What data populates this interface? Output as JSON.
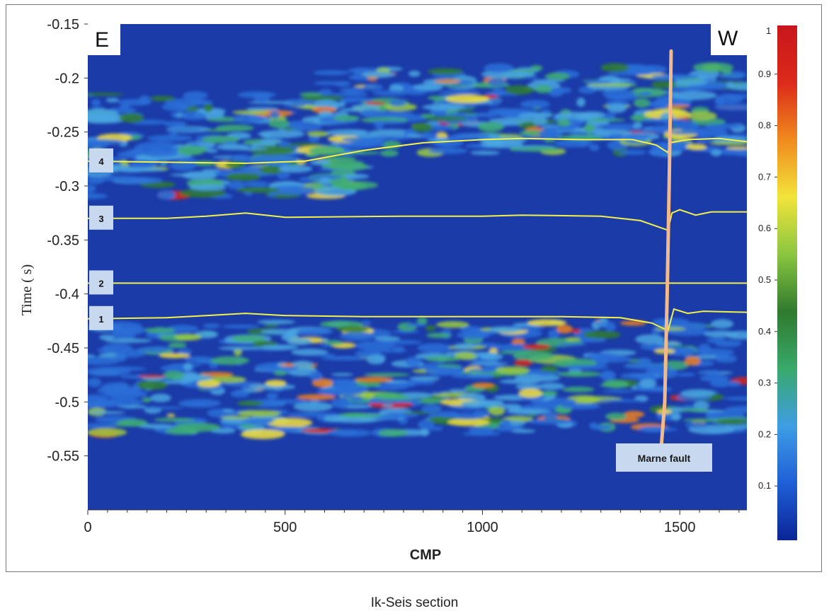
{
  "caption": "Ik-Seis section",
  "chart_data": {
    "type": "heatmap",
    "title": "",
    "xlabel": "CMP",
    "ylabel": "Time ( s)",
    "xlim": [
      0,
      1670
    ],
    "ylim": [
      -0.6,
      -0.15
    ],
    "x_ticks": [
      0,
      500,
      1000,
      1500
    ],
    "x_tick_labels": [
      "0",
      "500",
      "1000",
      "1500"
    ],
    "y_ticks": [
      -0.15,
      -0.2,
      -0.25,
      -0.3,
      -0.35,
      -0.4,
      -0.45,
      -0.5,
      -0.55
    ],
    "y_tick_labels": [
      "-0.15",
      "-0.2",
      "-0.25",
      "-0.3",
      "-0.35",
      "-0.4",
      "-0.45",
      "-0.5",
      "-0.55"
    ],
    "colorbar": {
      "min": 0,
      "max": 1,
      "ticks": [
        "1",
        "0.9",
        "0.8",
        "0.7",
        "0.6",
        "0.5",
        "0.4",
        "0.3",
        "0.2",
        "0.1"
      ],
      "colors": [
        "#0a2596",
        "#1f5fd6",
        "#3f9de4",
        "#39a96b",
        "#2f7a2e",
        "#8bc640",
        "#f2e43a",
        "#f08a1e",
        "#dc2a1a",
        "#c8161c"
      ]
    },
    "colormap": [
      "#1a3fae",
      "#2b6fd8",
      "#4aa6e0",
      "#3fae74",
      "#2f7d2e",
      "#9ccc3f",
      "#f3e13b",
      "#ee7f1c",
      "#d8271b"
    ],
    "background_color": "#1b3ba8",
    "corner_labels": {
      "left": "E",
      "right": "W"
    },
    "horizons": [
      {
        "label": "4",
        "color": "#f4f04a",
        "points": [
          [
            0,
            -0.277
          ],
          [
            200,
            -0.278
          ],
          [
            400,
            -0.279
          ],
          [
            550,
            -0.277
          ],
          [
            700,
            -0.267
          ],
          [
            850,
            -0.26
          ],
          [
            1000,
            -0.257
          ],
          [
            1100,
            -0.256
          ],
          [
            1250,
            -0.257
          ],
          [
            1380,
            -0.257
          ],
          [
            1440,
            -0.262
          ],
          [
            1470,
            -0.269
          ],
          [
            1475,
            -0.26
          ],
          [
            1520,
            -0.257
          ],
          [
            1600,
            -0.256
          ],
          [
            1670,
            -0.259
          ]
        ]
      },
      {
        "label": "3",
        "color": "#f4f04a",
        "points": [
          [
            0,
            -0.33
          ],
          [
            200,
            -0.33
          ],
          [
            300,
            -0.328
          ],
          [
            400,
            -0.325
          ],
          [
            500,
            -0.329
          ],
          [
            800,
            -0.328
          ],
          [
            1000,
            -0.328
          ],
          [
            1100,
            -0.327
          ],
          [
            1300,
            -0.328
          ],
          [
            1400,
            -0.332
          ],
          [
            1470,
            -0.341
          ],
          [
            1480,
            -0.325
          ],
          [
            1500,
            -0.322
          ],
          [
            1540,
            -0.327
          ],
          [
            1580,
            -0.324
          ],
          [
            1670,
            -0.324
          ]
        ]
      },
      {
        "label": "2",
        "color": "#f4f04a",
        "points": [
          [
            0,
            -0.39
          ],
          [
            1670,
            -0.39
          ]
        ]
      },
      {
        "label": "1",
        "color": "#f4f04a",
        "points": [
          [
            0,
            -0.423
          ],
          [
            200,
            -0.422
          ],
          [
            300,
            -0.42
          ],
          [
            400,
            -0.418
          ],
          [
            500,
            -0.42
          ],
          [
            700,
            -0.421
          ],
          [
            1000,
            -0.421
          ],
          [
            1200,
            -0.421
          ],
          [
            1350,
            -0.422
          ],
          [
            1430,
            -0.427
          ],
          [
            1470,
            -0.434
          ],
          [
            1485,
            -0.414
          ],
          [
            1520,
            -0.418
          ],
          [
            1560,
            -0.416
          ],
          [
            1670,
            -0.417
          ]
        ]
      }
    ],
    "fault": {
      "label": "Marne fault",
      "color": "#f2b98a",
      "points": [
        [
          1478,
          -0.175
        ],
        [
          1473,
          -0.3
        ],
        [
          1468,
          -0.4
        ],
        [
          1462,
          -0.5
        ],
        [
          1453,
          -0.542
        ]
      ]
    }
  }
}
